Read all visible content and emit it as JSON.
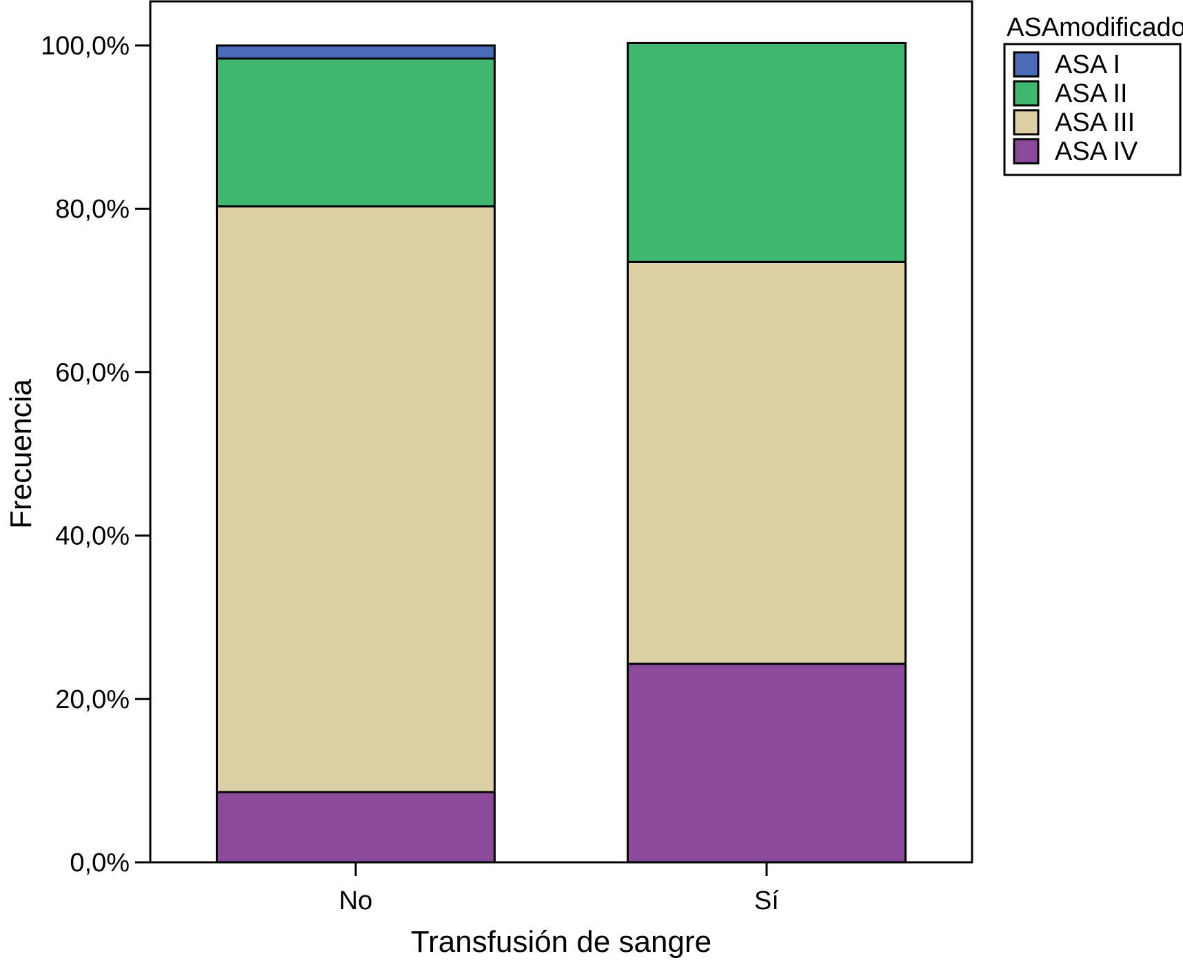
{
  "chart_data": {
    "type": "bar",
    "stacked": true,
    "categories": [
      "No",
      "Sí"
    ],
    "series": [
      {
        "name": "ASA IV",
        "color": "#8B4A99",
        "values": [
          8.6,
          24.3
        ]
      },
      {
        "name": "ASA III",
        "color": "#DBCFA3",
        "values": [
          71.7,
          49.2
        ]
      },
      {
        "name": "ASA II",
        "color": "#40B76E",
        "values": [
          18.1,
          26.8
        ]
      },
      {
        "name": "ASA I",
        "color": "#4A6CB8",
        "values": [
          1.6,
          0.0
        ]
      }
    ],
    "xlabel": "Transfusión de sangre",
    "ylabel": "Frecuencia",
    "ylim": [
      0,
      100
    ],
    "yticks": [
      0,
      20,
      40,
      60,
      80,
      100
    ],
    "ytick_labels": [
      "0,0%",
      "20,0%",
      "40,0%",
      "60,0%",
      "80,0%",
      "100,0%"
    ],
    "legend": {
      "title": "ASAmodificado",
      "position": "top-right, outside plot",
      "items": [
        "ASA I",
        "ASA II",
        "ASA III",
        "ASA IV"
      ]
    },
    "grid": false
  }
}
